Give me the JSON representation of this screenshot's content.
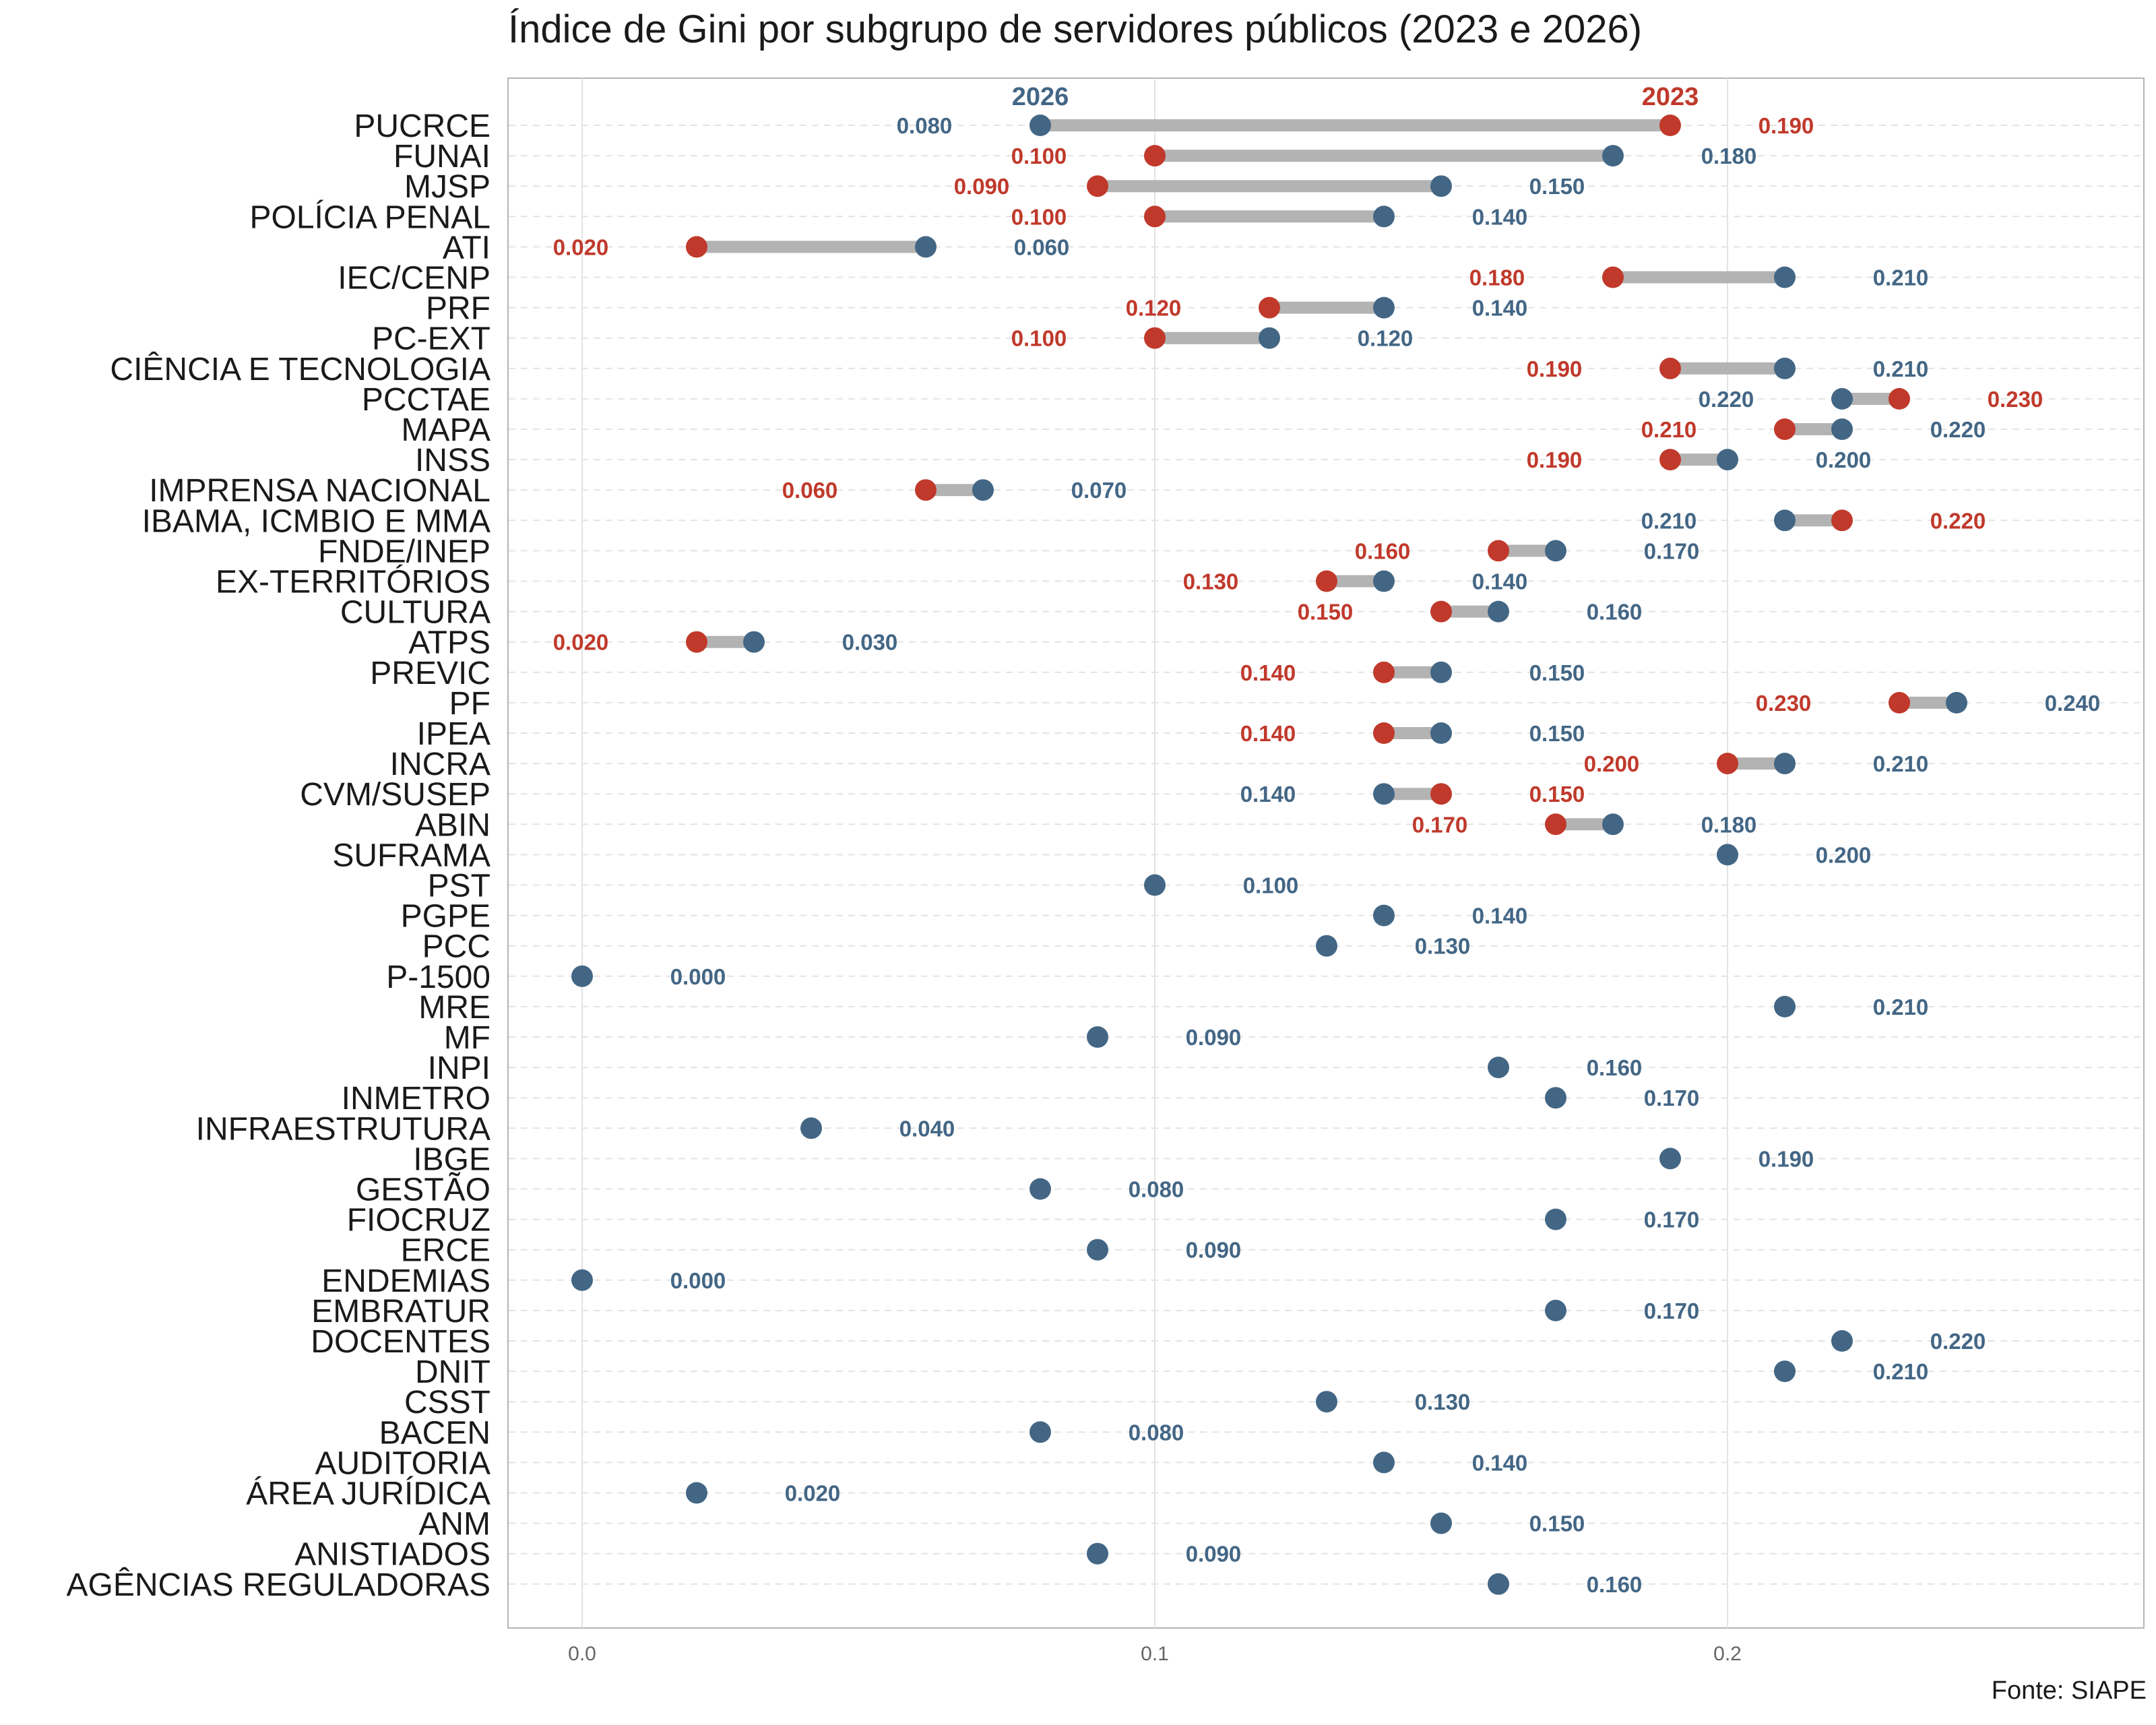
{
  "chart_data": {
    "type": "dumbbell",
    "title": "Índice de Gini por subgrupo de servidores públicos (2023 e 2026)",
    "source": "Fonte: SIAPE",
    "xlim": [
      -0.013,
      0.273
    ],
    "x_ticks": [
      0.0,
      0.1,
      0.2
    ],
    "x_tick_labels": [
      "0.0",
      "0.1",
      "0.2"
    ],
    "grid": true,
    "series": [
      {
        "name": "2026",
        "color": "#436685"
      },
      {
        "name": "2023",
        "color": "#c0392b"
      }
    ],
    "connector_color": "#b3b3b3",
    "rows": [
      {
        "category": "PUCRCE",
        "v2023": 0.19,
        "v2026": 0.08
      },
      {
        "category": "FUNAI",
        "v2023": 0.1,
        "v2026": 0.18
      },
      {
        "category": "MJSP",
        "v2023": 0.09,
        "v2026": 0.15
      },
      {
        "category": "POLÍCIA PENAL",
        "v2023": 0.1,
        "v2026": 0.14
      },
      {
        "category": "ATI",
        "v2023": 0.02,
        "v2026": 0.06
      },
      {
        "category": "IEC/CENP",
        "v2023": 0.18,
        "v2026": 0.21
      },
      {
        "category": "PRF",
        "v2023": 0.12,
        "v2026": 0.14
      },
      {
        "category": "PC-EXT",
        "v2023": 0.1,
        "v2026": 0.12
      },
      {
        "category": "CIÊNCIA E TECNOLOGIA",
        "v2023": 0.19,
        "v2026": 0.21
      },
      {
        "category": "PCCTAE",
        "v2023": 0.23,
        "v2026": 0.22
      },
      {
        "category": "MAPA",
        "v2023": 0.21,
        "v2026": 0.22
      },
      {
        "category": "INSS",
        "v2023": 0.19,
        "v2026": 0.2
      },
      {
        "category": "IMPRENSA NACIONAL",
        "v2023": 0.06,
        "v2026": 0.07
      },
      {
        "category": "IBAMA, ICMBIO E MMA",
        "v2023": 0.22,
        "v2026": 0.21
      },
      {
        "category": "FNDE/INEP",
        "v2023": 0.16,
        "v2026": 0.17
      },
      {
        "category": "EX-TERRITÓRIOS",
        "v2023": 0.13,
        "v2026": 0.14
      },
      {
        "category": "CULTURA",
        "v2023": 0.15,
        "v2026": 0.16
      },
      {
        "category": "ATPS",
        "v2023": 0.02,
        "v2026": 0.03
      },
      {
        "category": "PREVIC",
        "v2023": 0.14,
        "v2026": 0.15
      },
      {
        "category": "PF",
        "v2023": 0.23,
        "v2026": 0.24
      },
      {
        "category": "IPEA",
        "v2023": 0.14,
        "v2026": 0.15
      },
      {
        "category": "INCRA",
        "v2023": 0.2,
        "v2026": 0.21
      },
      {
        "category": "CVM/SUSEP",
        "v2023": 0.15,
        "v2026": 0.14
      },
      {
        "category": "ABIN",
        "v2023": 0.17,
        "v2026": 0.18
      },
      {
        "category": "SUFRAMA",
        "v2023": null,
        "v2026": 0.2
      },
      {
        "category": "PST",
        "v2023": null,
        "v2026": 0.1
      },
      {
        "category": "PGPE",
        "v2023": null,
        "v2026": 0.14
      },
      {
        "category": "PCC",
        "v2023": null,
        "v2026": 0.13
      },
      {
        "category": "P-1500",
        "v2023": null,
        "v2026": 0.0
      },
      {
        "category": "MRE",
        "v2023": null,
        "v2026": 0.21
      },
      {
        "category": "MF",
        "v2023": null,
        "v2026": 0.09
      },
      {
        "category": "INPI",
        "v2023": null,
        "v2026": 0.16
      },
      {
        "category": "INMETRO",
        "v2023": null,
        "v2026": 0.17
      },
      {
        "category": "INFRAESTRUTURA",
        "v2023": null,
        "v2026": 0.04
      },
      {
        "category": "IBGE",
        "v2023": null,
        "v2026": 0.19
      },
      {
        "category": "GESTÃO",
        "v2023": null,
        "v2026": 0.08
      },
      {
        "category": "FIOCRUZ",
        "v2023": null,
        "v2026": 0.17
      },
      {
        "category": "ERCE",
        "v2023": null,
        "v2026": 0.09
      },
      {
        "category": "ENDEMIAS",
        "v2023": null,
        "v2026": 0.0
      },
      {
        "category": "EMBRATUR",
        "v2023": null,
        "v2026": 0.17
      },
      {
        "category": "DOCENTES",
        "v2023": null,
        "v2026": 0.22
      },
      {
        "category": "DNIT",
        "v2023": null,
        "v2026": 0.21
      },
      {
        "category": "CSST",
        "v2023": null,
        "v2026": 0.13
      },
      {
        "category": "BACEN",
        "v2023": null,
        "v2026": 0.08
      },
      {
        "category": "AUDITORIA",
        "v2023": null,
        "v2026": 0.14
      },
      {
        "category": "ÁREA JURÍDICA",
        "v2023": null,
        "v2026": 0.02
      },
      {
        "category": "ANM",
        "v2023": null,
        "v2026": 0.15
      },
      {
        "category": "ANISTIADOS",
        "v2023": null,
        "v2026": 0.09
      },
      {
        "category": "AGÊNCIAS REGULADORAS",
        "v2023": null,
        "v2026": 0.16
      }
    ]
  }
}
